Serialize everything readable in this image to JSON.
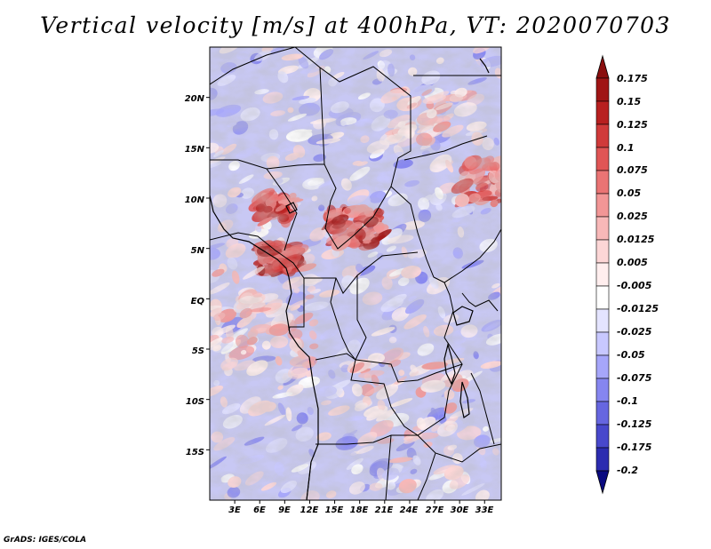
{
  "title": "Vertical velocity [m/s] at 400hPa, VT: 2020070703",
  "credit": "GrADS: IGES/COLA",
  "map": {
    "variable": "Vertical velocity",
    "units": "m/s",
    "level": "400hPa",
    "valid_time": "2020070703",
    "lat_range": [
      -20,
      25
    ],
    "lon_range": [
      0,
      35
    ],
    "lat_ticks": [
      {
        "value": 20,
        "label": "20N"
      },
      {
        "value": 15,
        "label": "15N"
      },
      {
        "value": 10,
        "label": "10N"
      },
      {
        "value": 5,
        "label": "5N"
      },
      {
        "value": 0,
        "label": "EQ"
      },
      {
        "value": -5,
        "label": "5S"
      },
      {
        "value": -10,
        "label": "10S"
      },
      {
        "value": -15,
        "label": "15S"
      }
    ],
    "lon_ticks": [
      {
        "value": 3,
        "label": "3E"
      },
      {
        "value": 6,
        "label": "6E"
      },
      {
        "value": 9,
        "label": "9E"
      },
      {
        "value": 12,
        "label": "12E"
      },
      {
        "value": 15,
        "label": "15E"
      },
      {
        "value": 18,
        "label": "18E"
      },
      {
        "value": 21,
        "label": "21E"
      },
      {
        "value": 24,
        "label": "24E"
      },
      {
        "value": 27,
        "label": "27E"
      },
      {
        "value": 30,
        "label": "30E"
      },
      {
        "value": 33,
        "label": "33E"
      }
    ]
  },
  "colorbar": {
    "levels": [
      {
        "label": "0.175",
        "color": "#a01515"
      },
      {
        "label": "0.15",
        "color": "#b82020"
      },
      {
        "label": "0.125",
        "color": "#d03a3a"
      },
      {
        "label": "0.1",
        "color": "#e05555"
      },
      {
        "label": "0.075",
        "color": "#ea7474"
      },
      {
        "label": "0.05",
        "color": "#f29696"
      },
      {
        "label": "0.025",
        "color": "#f8b8b8"
      },
      {
        "label": "0.0125",
        "color": "#fcd6d6"
      },
      {
        "label": "0.005",
        "color": "#ffeeee"
      },
      {
        "label": "-0.005",
        "color": "#ffffff"
      },
      {
        "label": "-0.0125",
        "color": "#e4e4ff"
      },
      {
        "label": "-0.025",
        "color": "#c8c8ff"
      },
      {
        "label": "-0.05",
        "color": "#a6a6fa"
      },
      {
        "label": "-0.075",
        "color": "#8686f0"
      },
      {
        "label": "-0.1",
        "color": "#6666e0"
      },
      {
        "label": "-0.125",
        "color": "#4848cc"
      },
      {
        "label": "-0.175",
        "color": "#2c2cb0"
      },
      {
        "label": "-0.2",
        "color": "#16169a"
      }
    ],
    "top_arrow_color": "#8a0e0e",
    "bottom_arrow_color": "#0a0a80"
  }
}
